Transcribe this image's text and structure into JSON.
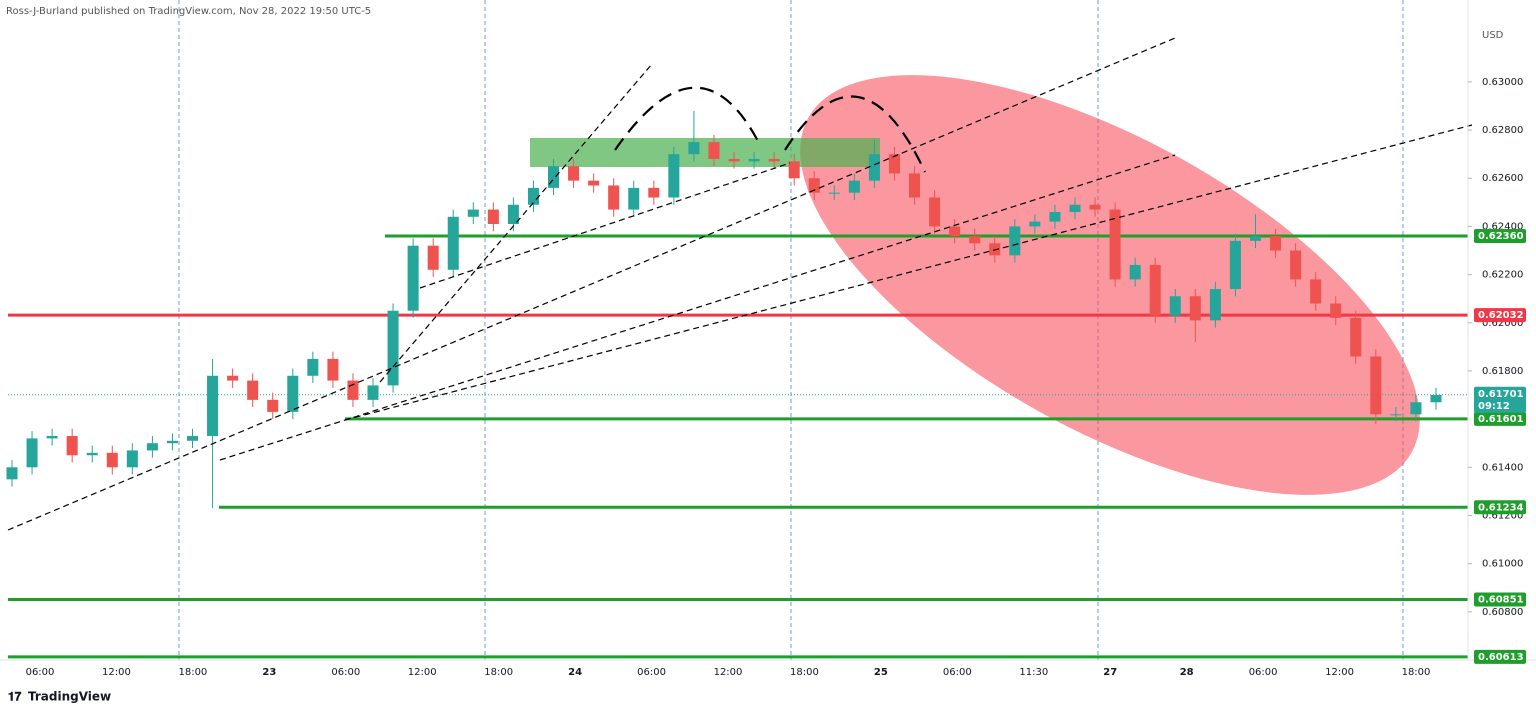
{
  "header": {
    "publisher": "Ross-J-Burland published on TradingView.com, Nov 28, 2022 19:50 UTC-5"
  },
  "footer": {
    "brand": "TradingView"
  },
  "chart_data": {
    "type": "candlestick",
    "currency": "USD",
    "up_color": "#26a69a",
    "down_color": "#ef5350",
    "ylim": [
      0.606,
      0.6334
    ],
    "yticks": [
      {
        "value": 0.63,
        "label": "0.63000"
      },
      {
        "value": 0.628,
        "label": "0.62800"
      },
      {
        "value": 0.626,
        "label": "0.62600"
      },
      {
        "value": 0.624,
        "label": "0.62400"
      },
      {
        "value": 0.622,
        "label": "0.62200"
      },
      {
        "value": 0.62,
        "label": "0.62000"
      },
      {
        "value": 0.618,
        "label": "0.61800"
      },
      {
        "value": 0.614,
        "label": "0.61400"
      },
      {
        "value": 0.612,
        "label": "0.61200"
      },
      {
        "value": 0.61,
        "label": "0.61000"
      },
      {
        "value": 0.608,
        "label": "0.60800"
      }
    ],
    "time_labels": [
      "06:00",
      "12:00",
      "18:00",
      "23",
      "06:00",
      "12:00",
      "18:00",
      "24",
      "06:00",
      "12:00",
      "18:00",
      "25",
      "06:00",
      "11:30",
      "27",
      "28",
      "06:00",
      "12:00",
      "18:00"
    ],
    "open": [
      0.6135,
      0.614,
      0.6152,
      0.6153,
      0.6145,
      0.6146,
      0.614,
      0.6147,
      0.615,
      0.6151,
      0.6153,
      0.6178,
      0.6176,
      0.6168,
      0.6163,
      0.6178,
      0.6185,
      0.6176,
      0.6168,
      0.6174,
      0.6205,
      0.6232,
      0.6222,
      0.6244,
      0.6247,
      0.6241,
      0.6249,
      0.6256,
      0.6265,
      0.6259,
      0.6257,
      0.6247,
      0.6256,
      0.6252,
      0.627,
      0.6275,
      0.6268,
      0.6267,
      0.6268,
      0.6267,
      0.626,
      0.6254,
      0.6254,
      0.6259,
      0.627,
      0.6262,
      0.6252,
      0.624,
      0.6236,
      0.6233,
      0.6228,
      0.624,
      0.6242,
      0.6246,
      0.6249,
      0.6247,
      0.6218,
      0.6224,
      0.6203,
      0.6211,
      0.6201,
      0.6214,
      0.6234,
      0.6236,
      0.623,
      0.6218,
      0.6208,
      0.6202,
      0.6186,
      0.6162,
      0.6162,
      0.6167
    ],
    "high": [
      0.6143,
      0.6155,
      0.6156,
      0.6156,
      0.6149,
      0.6149,
      0.615,
      0.6153,
      0.6154,
      0.6156,
      0.6185,
      0.6181,
      0.6179,
      0.6171,
      0.6181,
      0.6188,
      0.6188,
      0.6179,
      0.6177,
      0.6208,
      0.6235,
      0.6235,
      0.6247,
      0.625,
      0.625,
      0.6252,
      0.6259,
      0.6268,
      0.6268,
      0.6262,
      0.626,
      0.6259,
      0.6259,
      0.6273,
      0.6288,
      0.6278,
      0.6271,
      0.6271,
      0.6271,
      0.627,
      0.6263,
      0.6257,
      0.6262,
      0.6276,
      0.6273,
      0.6265,
      0.6255,
      0.6243,
      0.6239,
      0.6236,
      0.6243,
      0.6245,
      0.6249,
      0.6252,
      0.6252,
      0.625,
      0.6227,
      0.6227,
      0.6214,
      0.6214,
      0.6217,
      0.6237,
      0.6245,
      0.6239,
      0.6233,
      0.6221,
      0.6211,
      0.6205,
      0.6189,
      0.6165,
      0.617,
      0.6173
    ],
    "low": [
      0.6132,
      0.6137,
      0.6149,
      0.6142,
      0.6142,
      0.6137,
      0.6137,
      0.6144,
      0.6147,
      0.6148,
      0.6123,
      0.6173,
      0.6165,
      0.616,
      0.616,
      0.6175,
      0.6173,
      0.6165,
      0.6165,
      0.6171,
      0.6202,
      0.6219,
      0.6219,
      0.6241,
      0.6238,
      0.6238,
      0.6246,
      0.6253,
      0.6256,
      0.6254,
      0.6244,
      0.6244,
      0.6249,
      0.6249,
      0.6267,
      0.6265,
      0.6264,
      0.6264,
      0.6264,
      0.6257,
      0.6251,
      0.6251,
      0.6251,
      0.6256,
      0.6259,
      0.6249,
      0.6237,
      0.6233,
      0.623,
      0.6225,
      0.6225,
      0.6237,
      0.6239,
      0.6243,
      0.6244,
      0.6215,
      0.6215,
      0.62,
      0.62,
      0.6192,
      0.6198,
      0.6211,
      0.6231,
      0.6227,
      0.6215,
      0.6205,
      0.6199,
      0.6183,
      0.6158,
      0.6159,
      0.6159,
      0.6164
    ],
    "close": [
      0.614,
      0.6152,
      0.6153,
      0.6145,
      0.6146,
      0.614,
      0.6147,
      0.615,
      0.6151,
      0.6153,
      0.6178,
      0.6176,
      0.6168,
      0.6163,
      0.6178,
      0.6185,
      0.6176,
      0.6168,
      0.6174,
      0.6205,
      0.6232,
      0.6222,
      0.6244,
      0.6247,
      0.6241,
      0.6249,
      0.6256,
      0.6265,
      0.6259,
      0.6257,
      0.6247,
      0.6256,
      0.6252,
      0.627,
      0.6275,
      0.6268,
      0.6267,
      0.6268,
      0.6267,
      0.626,
      0.6254,
      0.6254,
      0.6259,
      0.627,
      0.6262,
      0.6252,
      0.624,
      0.6236,
      0.6233,
      0.6228,
      0.624,
      0.6242,
      0.6246,
      0.6249,
      0.6247,
      0.6218,
      0.6224,
      0.6203,
      0.6211,
      0.6201,
      0.6214,
      0.6234,
      0.6236,
      0.623,
      0.6218,
      0.6208,
      0.6202,
      0.6186,
      0.6162,
      0.6162,
      0.6167,
      0.617
    ],
    "levels": [
      {
        "value": 0.6236,
        "label": "0.62360",
        "color": "#1e9e2a"
      },
      {
        "value": 0.62032,
        "label": "0.62032",
        "color": "#f23645"
      },
      {
        "value": 0.61601,
        "label": "0.61601",
        "color": "#1e9e2a"
      },
      {
        "value": 0.61234,
        "label": "0.61234",
        "color": "#1e9e2a"
      },
      {
        "value": 0.60851,
        "label": "0.60851",
        "color": "#1e9e2a"
      },
      {
        "value": 0.60613,
        "label": "0.60613",
        "color": "#1e9e2a"
      }
    ],
    "last_price": {
      "value": 0.61701,
      "label": "0.61701",
      "countdown": "09:12",
      "color": "#26a69a"
    }
  }
}
